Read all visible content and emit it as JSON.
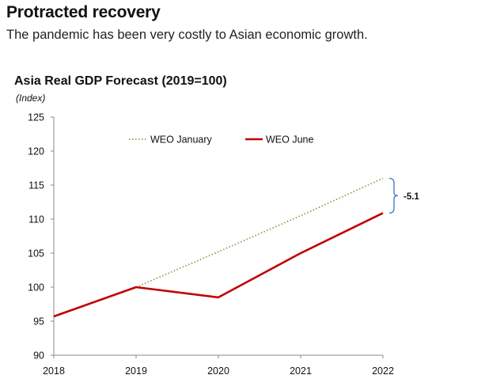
{
  "headline": "Protracted recovery",
  "dek": "The pandemic has been very costly to Asian economic growth.",
  "chart_data": {
    "type": "line",
    "title": "Asia Real GDP Forecast (2019=100)",
    "ylabel": "(Index)",
    "xlabel": "",
    "x": [
      2018,
      2019,
      2020,
      2021,
      2022
    ],
    "ylim": [
      90,
      125
    ],
    "yticks": [
      90,
      95,
      100,
      105,
      110,
      115,
      120,
      125
    ],
    "grid": false,
    "legend_placement": "top-center",
    "series": [
      {
        "name": "WEO January",
        "x": [
          2019,
          2020,
          2021,
          2022
        ],
        "values": [
          100,
          105.2,
          110.5,
          116.0
        ],
        "color": "#9a9a4a",
        "style": "dotted"
      },
      {
        "name": "WEO June",
        "x": [
          2018,
          2019,
          2020,
          2021,
          2022
        ],
        "values": [
          95.7,
          100.0,
          98.5,
          105.0,
          110.9
        ],
        "color": "#c00000",
        "style": "solid"
      }
    ],
    "annotations": [
      {
        "text": "-5.1",
        "x": 2022,
        "y_from": 110.9,
        "y_to": 116.0,
        "bracket_color": "#4a7ec8"
      }
    ]
  }
}
